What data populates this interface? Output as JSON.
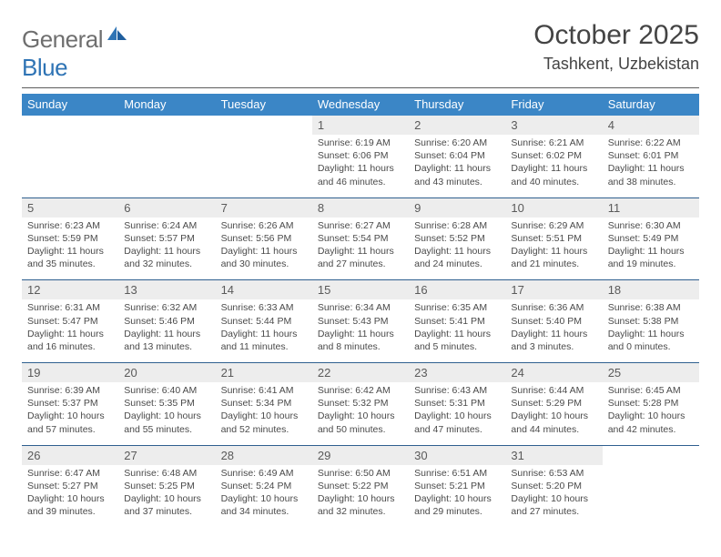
{
  "logo": {
    "word1": "General",
    "word2": "Blue"
  },
  "title": "October 2025",
  "location": "Tashkent, Uzbekistan",
  "header_bg": "#3b86c6",
  "daynum_bg": "#ededed",
  "rule_color": "#2f5f8f",
  "day_names": [
    "Sunday",
    "Monday",
    "Tuesday",
    "Wednesday",
    "Thursday",
    "Friday",
    "Saturday"
  ],
  "weeks": [
    {
      "nums": [
        "",
        "",
        "",
        "1",
        "2",
        "3",
        "4"
      ],
      "cells": [
        null,
        null,
        null,
        {
          "sunrise": "Sunrise: 6:19 AM",
          "sunset": "Sunset: 6:06 PM",
          "day1": "Daylight: 11 hours",
          "day2": "and 46 minutes."
        },
        {
          "sunrise": "Sunrise: 6:20 AM",
          "sunset": "Sunset: 6:04 PM",
          "day1": "Daylight: 11 hours",
          "day2": "and 43 minutes."
        },
        {
          "sunrise": "Sunrise: 6:21 AM",
          "sunset": "Sunset: 6:02 PM",
          "day1": "Daylight: 11 hours",
          "day2": "and 40 minutes."
        },
        {
          "sunrise": "Sunrise: 6:22 AM",
          "sunset": "Sunset: 6:01 PM",
          "day1": "Daylight: 11 hours",
          "day2": "and 38 minutes."
        }
      ]
    },
    {
      "nums": [
        "5",
        "6",
        "7",
        "8",
        "9",
        "10",
        "11"
      ],
      "cells": [
        {
          "sunrise": "Sunrise: 6:23 AM",
          "sunset": "Sunset: 5:59 PM",
          "day1": "Daylight: 11 hours",
          "day2": "and 35 minutes."
        },
        {
          "sunrise": "Sunrise: 6:24 AM",
          "sunset": "Sunset: 5:57 PM",
          "day1": "Daylight: 11 hours",
          "day2": "and 32 minutes."
        },
        {
          "sunrise": "Sunrise: 6:26 AM",
          "sunset": "Sunset: 5:56 PM",
          "day1": "Daylight: 11 hours",
          "day2": "and 30 minutes."
        },
        {
          "sunrise": "Sunrise: 6:27 AM",
          "sunset": "Sunset: 5:54 PM",
          "day1": "Daylight: 11 hours",
          "day2": "and 27 minutes."
        },
        {
          "sunrise": "Sunrise: 6:28 AM",
          "sunset": "Sunset: 5:52 PM",
          "day1": "Daylight: 11 hours",
          "day2": "and 24 minutes."
        },
        {
          "sunrise": "Sunrise: 6:29 AM",
          "sunset": "Sunset: 5:51 PM",
          "day1": "Daylight: 11 hours",
          "day2": "and 21 minutes."
        },
        {
          "sunrise": "Sunrise: 6:30 AM",
          "sunset": "Sunset: 5:49 PM",
          "day1": "Daylight: 11 hours",
          "day2": "and 19 minutes."
        }
      ]
    },
    {
      "nums": [
        "12",
        "13",
        "14",
        "15",
        "16",
        "17",
        "18"
      ],
      "cells": [
        {
          "sunrise": "Sunrise: 6:31 AM",
          "sunset": "Sunset: 5:47 PM",
          "day1": "Daylight: 11 hours",
          "day2": "and 16 minutes."
        },
        {
          "sunrise": "Sunrise: 6:32 AM",
          "sunset": "Sunset: 5:46 PM",
          "day1": "Daylight: 11 hours",
          "day2": "and 13 minutes."
        },
        {
          "sunrise": "Sunrise: 6:33 AM",
          "sunset": "Sunset: 5:44 PM",
          "day1": "Daylight: 11 hours",
          "day2": "and 11 minutes."
        },
        {
          "sunrise": "Sunrise: 6:34 AM",
          "sunset": "Sunset: 5:43 PM",
          "day1": "Daylight: 11 hours",
          "day2": "and 8 minutes."
        },
        {
          "sunrise": "Sunrise: 6:35 AM",
          "sunset": "Sunset: 5:41 PM",
          "day1": "Daylight: 11 hours",
          "day2": "and 5 minutes."
        },
        {
          "sunrise": "Sunrise: 6:36 AM",
          "sunset": "Sunset: 5:40 PM",
          "day1": "Daylight: 11 hours",
          "day2": "and 3 minutes."
        },
        {
          "sunrise": "Sunrise: 6:38 AM",
          "sunset": "Sunset: 5:38 PM",
          "day1": "Daylight: 11 hours",
          "day2": "and 0 minutes."
        }
      ]
    },
    {
      "nums": [
        "19",
        "20",
        "21",
        "22",
        "23",
        "24",
        "25"
      ],
      "cells": [
        {
          "sunrise": "Sunrise: 6:39 AM",
          "sunset": "Sunset: 5:37 PM",
          "day1": "Daylight: 10 hours",
          "day2": "and 57 minutes."
        },
        {
          "sunrise": "Sunrise: 6:40 AM",
          "sunset": "Sunset: 5:35 PM",
          "day1": "Daylight: 10 hours",
          "day2": "and 55 minutes."
        },
        {
          "sunrise": "Sunrise: 6:41 AM",
          "sunset": "Sunset: 5:34 PM",
          "day1": "Daylight: 10 hours",
          "day2": "and 52 minutes."
        },
        {
          "sunrise": "Sunrise: 6:42 AM",
          "sunset": "Sunset: 5:32 PM",
          "day1": "Daylight: 10 hours",
          "day2": "and 50 minutes."
        },
        {
          "sunrise": "Sunrise: 6:43 AM",
          "sunset": "Sunset: 5:31 PM",
          "day1": "Daylight: 10 hours",
          "day2": "and 47 minutes."
        },
        {
          "sunrise": "Sunrise: 6:44 AM",
          "sunset": "Sunset: 5:29 PM",
          "day1": "Daylight: 10 hours",
          "day2": "and 44 minutes."
        },
        {
          "sunrise": "Sunrise: 6:45 AM",
          "sunset": "Sunset: 5:28 PM",
          "day1": "Daylight: 10 hours",
          "day2": "and 42 minutes."
        }
      ]
    },
    {
      "nums": [
        "26",
        "27",
        "28",
        "29",
        "30",
        "31",
        ""
      ],
      "cells": [
        {
          "sunrise": "Sunrise: 6:47 AM",
          "sunset": "Sunset: 5:27 PM",
          "day1": "Daylight: 10 hours",
          "day2": "and 39 minutes."
        },
        {
          "sunrise": "Sunrise: 6:48 AM",
          "sunset": "Sunset: 5:25 PM",
          "day1": "Daylight: 10 hours",
          "day2": "and 37 minutes."
        },
        {
          "sunrise": "Sunrise: 6:49 AM",
          "sunset": "Sunset: 5:24 PM",
          "day1": "Daylight: 10 hours",
          "day2": "and 34 minutes."
        },
        {
          "sunrise": "Sunrise: 6:50 AM",
          "sunset": "Sunset: 5:22 PM",
          "day1": "Daylight: 10 hours",
          "day2": "and 32 minutes."
        },
        {
          "sunrise": "Sunrise: 6:51 AM",
          "sunset": "Sunset: 5:21 PM",
          "day1": "Daylight: 10 hours",
          "day2": "and 29 minutes."
        },
        {
          "sunrise": "Sunrise: 6:53 AM",
          "sunset": "Sunset: 5:20 PM",
          "day1": "Daylight: 10 hours",
          "day2": "and 27 minutes."
        },
        null
      ]
    }
  ]
}
